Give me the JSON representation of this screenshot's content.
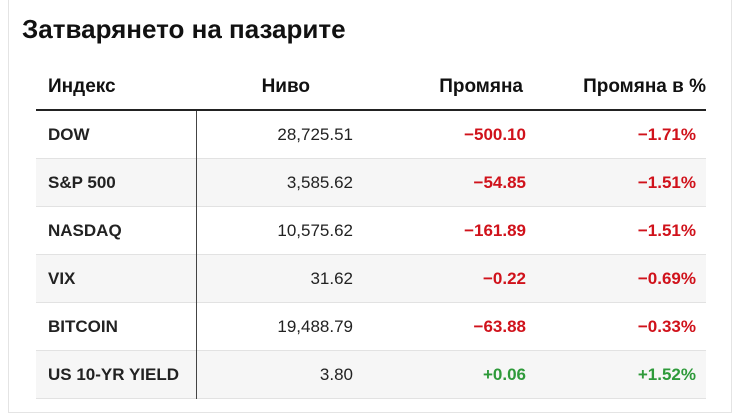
{
  "title": "Затварянето на пазарите",
  "table": {
    "headers": [
      "Индекс",
      "Ниво",
      "Промяна",
      "Промяна в %"
    ],
    "rows": [
      [
        "DOW",
        "28,725.51",
        "−500.10",
        "−1.71%"
      ],
      [
        "S&P 500",
        "3,585.62",
        "−54.85",
        "−1.51%"
      ],
      [
        "NASDAQ",
        "10,575.62",
        "−161.89",
        "−1.51%"
      ],
      [
        "VIX",
        "31.62",
        "−0.22",
        "−0.69%"
      ],
      [
        "BITCOIN",
        "19,488.79",
        "−63.88",
        "−0.33%"
      ],
      [
        "US 10-YR YIELD",
        "3.80",
        "+0.06",
        "+1.52%"
      ]
    ]
  }
}
